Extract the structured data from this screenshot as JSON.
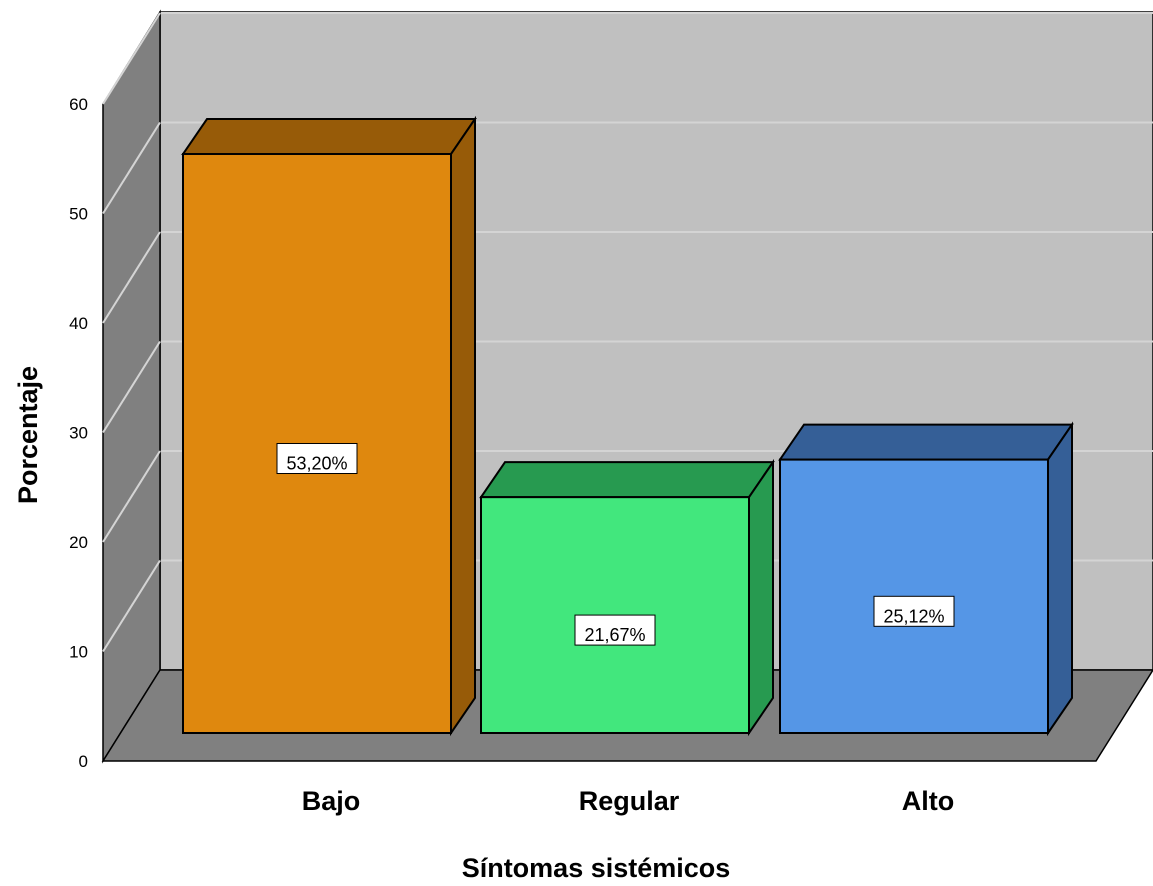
{
  "chart_data": {
    "type": "bar",
    "title": "",
    "xlabel": "Síntomas sistémicos",
    "ylabel": "Porcentaje",
    "ylim": [
      0,
      60
    ],
    "yticks": [
      0,
      10,
      20,
      30,
      40,
      50,
      60
    ],
    "ytick_labels": [
      "0",
      "10",
      "20",
      "30",
      "40",
      "50",
      "60"
    ],
    "grid": true,
    "categories": [
      "Bajo",
      "Regular",
      "Alto"
    ],
    "values": [
      53.2,
      21.67,
      25.12
    ],
    "data_labels": [
      "53,20%",
      "21,67%",
      "25,12%"
    ],
    "colors": {
      "Bajo": {
        "front": "#DF880E",
        "top": "#975B08",
        "side": "#975B08"
      },
      "Regular": {
        "front": "#42E77D",
        "top": "#279A50",
        "side": "#279A50"
      },
      "Alto": {
        "front": "#5596E6",
        "top": "#355F97",
        "side": "#355F97"
      }
    },
    "wall_color": "#C0C0C0",
    "side_wall_color": "#808080",
    "floor_color": "#808080",
    "grid_color": "#D4D4D4"
  }
}
